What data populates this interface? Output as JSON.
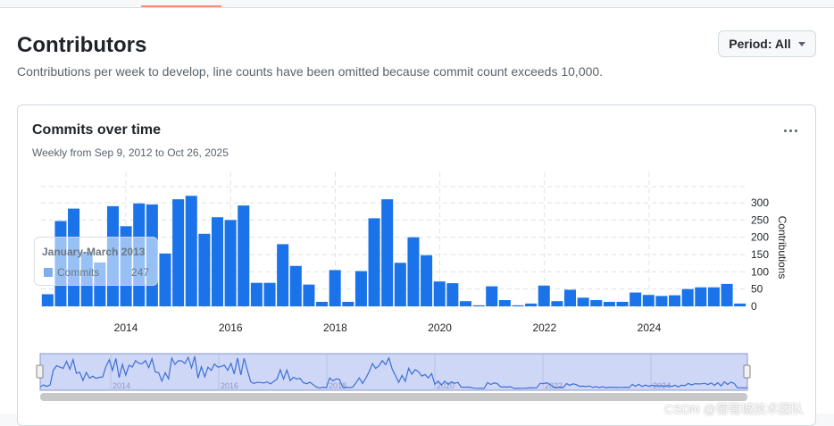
{
  "header": {
    "title": "Contributors",
    "subtitle": "Contributions per week to develop, line counts have been omitted because commit count exceeds 10,000.",
    "period_label": "Period: All"
  },
  "card": {
    "title": "Commits over time",
    "subtitle": "Weekly from Sep 9, 2012 to Oct 26, 2025"
  },
  "tooltip": {
    "title": "January-March 2013",
    "series_label": "Commits",
    "value": "247"
  },
  "watermark": "CSDN @葡萄城技术团队",
  "colors": {
    "bar": "#1a73e8",
    "accent_tab": "#fd8c73",
    "navigator_fill": "#cfd7f7"
  },
  "chart_data": {
    "type": "bar",
    "title": "Commits over time",
    "ylabel": "Contributions",
    "ylim": [
      0,
      330
    ],
    "yticks": [
      0,
      50,
      100,
      150,
      200,
      250,
      300
    ],
    "xticks": [
      "2014",
      "2016",
      "2018",
      "2020",
      "2022",
      "2024"
    ],
    "xtick_positions_year": [
      2014,
      2016,
      2018,
      2020,
      2022,
      2024
    ],
    "x_start_year": 2012.75,
    "quarter_step_years": 0.25,
    "series": [
      {
        "name": "Commits",
        "values": [
          35,
          247,
          283,
          157,
          127,
          290,
          232,
          298,
          295,
          153,
          310,
          320,
          210,
          258,
          250,
          292,
          68,
          68,
          180,
          117,
          63,
          13,
          105,
          13,
          102,
          255,
          310,
          126,
          200,
          148,
          72,
          67,
          15,
          3,
          58,
          18,
          3,
          8,
          60,
          15,
          48,
          25,
          18,
          13,
          13,
          40,
          33,
          30,
          32,
          50,
          55,
          55,
          65,
          8
        ]
      }
    ],
    "navigator_ticks": [
      "2014",
      "2016",
      "2018",
      "2020",
      "2022",
      "2024"
    ]
  }
}
